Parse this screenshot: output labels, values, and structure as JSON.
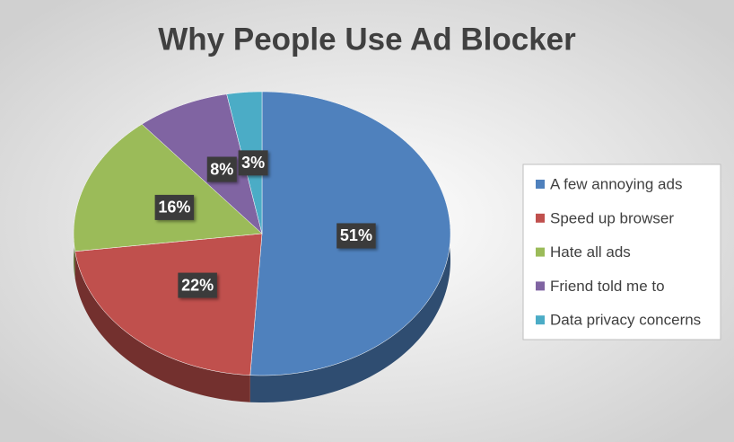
{
  "chart_data": {
    "type": "pie",
    "title": "Why People Use Ad Blocker",
    "categories": [
      "A few annoying ads",
      "Speed up browser",
      "Hate all ads",
      "Friend told me to",
      "Data privacy concerns"
    ],
    "values": [
      51,
      22,
      16,
      8,
      3
    ],
    "value_labels": [
      "51%",
      "22%",
      "16%",
      "8%",
      "3%"
    ],
    "colors": [
      "#4f81bd",
      "#c0504d",
      "#9bbb59",
      "#8064a2",
      "#4bacc6"
    ],
    "legend": "right"
  }
}
